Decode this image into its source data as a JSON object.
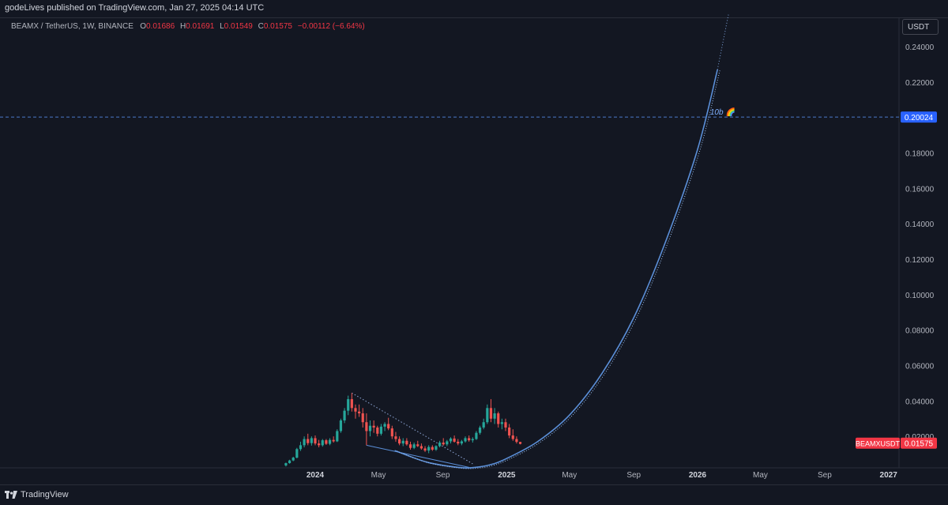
{
  "header": {
    "publish_text": "godeLives published on TradingView.com, Jan 27, 2025 04:14 UTC"
  },
  "legend": {
    "symbol": "BEAMX / TetherUS, 1W, BINANCE",
    "open_label": "O",
    "open": "0.01686",
    "high_label": "H",
    "high": "0.01691",
    "low_label": "L",
    "low": "0.01549",
    "close_label": "C",
    "close": "0.01575",
    "change": "−0.00112 (−6.64%)"
  },
  "price_axis": {
    "unit": "USDT"
  },
  "footer": {
    "brand": "TradingView",
    "logo_icon": "tradingview-logo-icon"
  },
  "colors": {
    "background": "#131722",
    "up": "#26a69a",
    "down": "#ef5350",
    "curve": "#5b8fd8",
    "label": "#2962ff"
  },
  "chart_data": {
    "type": "candlestick",
    "y_ticks": [
      "0.24000",
      "0.22000",
      "0.18000",
      "0.16000",
      "0.14000",
      "0.12000",
      "0.10000",
      "0.08000",
      "0.06000",
      "0.04000",
      "0.02000"
    ],
    "y_tick_values": [
      0.24,
      0.22,
      0.18,
      0.16,
      0.14,
      0.12,
      0.1,
      0.08,
      0.06,
      0.04,
      0.02
    ],
    "ylim": [
      0.0,
      0.25
    ],
    "x_ticks": [
      "2024",
      "May",
      "Sep",
      "2025",
      "May",
      "Sep",
      "2026",
      "May",
      "Sep",
      "2027"
    ],
    "x_tick_values": [
      "2024-01-01",
      "2024-05-01",
      "2024-09-01",
      "2025-01-01",
      "2025-05-01",
      "2025-09-01",
      "2026-01-01",
      "2026-05-01",
      "2026-09-01",
      "2027-01-01"
    ],
    "xlim": [
      "2023-09-15",
      "2027-03-01"
    ],
    "horizontal_line": {
      "value": 0.20024,
      "label": "0.20024"
    },
    "annotation": {
      "text": "10b",
      "emoji": "🌈",
      "at": [
        "2026-01-25",
        0.2016
      ]
    },
    "last_price_label": {
      "symbol": "BEAMXUSDT",
      "value": "0.01575",
      "y": 0.01575
    },
    "candles": [
      {
        "t": "2023-11-06",
        "o": 0.0036,
        "h": 0.0052,
        "l": 0.003,
        "c": 0.0049
      },
      {
        "t": "2023-11-13",
        "o": 0.0049,
        "h": 0.0068,
        "l": 0.0046,
        "c": 0.0064
      },
      {
        "t": "2023-11-20",
        "o": 0.0064,
        "h": 0.0085,
        "l": 0.006,
        "c": 0.008
      },
      {
        "t": "2023-11-27",
        "o": 0.008,
        "h": 0.0135,
        "l": 0.0076,
        "c": 0.0128
      },
      {
        "t": "2023-12-04",
        "o": 0.0128,
        "h": 0.017,
        "l": 0.0118,
        "c": 0.015
      },
      {
        "t": "2023-12-11",
        "o": 0.015,
        "h": 0.02,
        "l": 0.0138,
        "c": 0.0185
      },
      {
        "t": "2023-12-18",
        "o": 0.0185,
        "h": 0.0215,
        "l": 0.015,
        "c": 0.0162
      },
      {
        "t": "2023-12-25",
        "o": 0.0162,
        "h": 0.02,
        "l": 0.0148,
        "c": 0.019
      },
      {
        "t": "2024-01-01",
        "o": 0.019,
        "h": 0.0205,
        "l": 0.015,
        "c": 0.016
      },
      {
        "t": "2024-01-08",
        "o": 0.016,
        "h": 0.018,
        "l": 0.0138,
        "c": 0.015
      },
      {
        "t": "2024-01-15",
        "o": 0.015,
        "h": 0.0185,
        "l": 0.0142,
        "c": 0.0178
      },
      {
        "t": "2024-01-22",
        "o": 0.0178,
        "h": 0.0185,
        "l": 0.0152,
        "c": 0.0158
      },
      {
        "t": "2024-01-29",
        "o": 0.0158,
        "h": 0.019,
        "l": 0.015,
        "c": 0.018
      },
      {
        "t": "2024-02-05",
        "o": 0.018,
        "h": 0.02,
        "l": 0.0165,
        "c": 0.0172
      },
      {
        "t": "2024-02-12",
        "o": 0.0172,
        "h": 0.024,
        "l": 0.0168,
        "c": 0.023
      },
      {
        "t": "2024-02-19",
        "o": 0.023,
        "h": 0.03,
        "l": 0.022,
        "c": 0.029
      },
      {
        "t": "2024-02-26",
        "o": 0.029,
        "h": 0.036,
        "l": 0.0275,
        "c": 0.0345
      },
      {
        "t": "2024-03-04",
        "o": 0.0345,
        "h": 0.043,
        "l": 0.032,
        "c": 0.041
      },
      {
        "t": "2024-03-11",
        "o": 0.041,
        "h": 0.0445,
        "l": 0.034,
        "c": 0.036
      },
      {
        "t": "2024-03-18",
        "o": 0.036,
        "h": 0.038,
        "l": 0.03,
        "c": 0.034
      },
      {
        "t": "2024-03-25",
        "o": 0.034,
        "h": 0.038,
        "l": 0.031,
        "c": 0.033
      },
      {
        "t": "2024-04-01",
        "o": 0.033,
        "h": 0.036,
        "l": 0.025,
        "c": 0.028
      },
      {
        "t": "2024-04-08",
        "o": 0.028,
        "h": 0.033,
        "l": 0.015,
        "c": 0.023
      },
      {
        "t": "2024-04-15",
        "o": 0.023,
        "h": 0.029,
        "l": 0.02,
        "c": 0.026
      },
      {
        "t": "2024-04-22",
        "o": 0.026,
        "h": 0.029,
        "l": 0.022,
        "c": 0.025
      },
      {
        "t": "2024-04-29",
        "o": 0.025,
        "h": 0.026,
        "l": 0.02,
        "c": 0.0215
      },
      {
        "t": "2024-05-06",
        "o": 0.0215,
        "h": 0.027,
        "l": 0.0205,
        "c": 0.0255
      },
      {
        "t": "2024-05-13",
        "o": 0.0255,
        "h": 0.028,
        "l": 0.023,
        "c": 0.027
      },
      {
        "t": "2024-05-20",
        "o": 0.027,
        "h": 0.0305,
        "l": 0.0235,
        "c": 0.0245
      },
      {
        "t": "2024-05-27",
        "o": 0.0245,
        "h": 0.026,
        "l": 0.0185,
        "c": 0.02
      },
      {
        "t": "2024-06-03",
        "o": 0.02,
        "h": 0.0225,
        "l": 0.017,
        "c": 0.0185
      },
      {
        "t": "2024-06-10",
        "o": 0.0185,
        "h": 0.02,
        "l": 0.015,
        "c": 0.016
      },
      {
        "t": "2024-06-17",
        "o": 0.016,
        "h": 0.019,
        "l": 0.0145,
        "c": 0.0175
      },
      {
        "t": "2024-06-24",
        "o": 0.0175,
        "h": 0.019,
        "l": 0.0148,
        "c": 0.0155
      },
      {
        "t": "2024-07-01",
        "o": 0.0155,
        "h": 0.017,
        "l": 0.0125,
        "c": 0.0135
      },
      {
        "t": "2024-07-08",
        "o": 0.0135,
        "h": 0.0165,
        "l": 0.0128,
        "c": 0.0155
      },
      {
        "t": "2024-07-15",
        "o": 0.0155,
        "h": 0.0175,
        "l": 0.014,
        "c": 0.0145
      },
      {
        "t": "2024-07-22",
        "o": 0.0145,
        "h": 0.016,
        "l": 0.0125,
        "c": 0.0132
      },
      {
        "t": "2024-07-29",
        "o": 0.0132,
        "h": 0.0145,
        "l": 0.0112,
        "c": 0.012
      },
      {
        "t": "2024-08-05",
        "o": 0.012,
        "h": 0.015,
        "l": 0.0105,
        "c": 0.014
      },
      {
        "t": "2024-08-12",
        "o": 0.014,
        "h": 0.015,
        "l": 0.0118,
        "c": 0.0125
      },
      {
        "t": "2024-08-19",
        "o": 0.0125,
        "h": 0.015,
        "l": 0.0118,
        "c": 0.0145
      },
      {
        "t": "2024-08-26",
        "o": 0.0145,
        "h": 0.0175,
        "l": 0.0138,
        "c": 0.0165
      },
      {
        "t": "2024-09-02",
        "o": 0.0165,
        "h": 0.019,
        "l": 0.0148,
        "c": 0.0155
      },
      {
        "t": "2024-09-09",
        "o": 0.0155,
        "h": 0.018,
        "l": 0.0145,
        "c": 0.0172
      },
      {
        "t": "2024-09-16",
        "o": 0.0172,
        "h": 0.0195,
        "l": 0.016,
        "c": 0.0188
      },
      {
        "t": "2024-09-23",
        "o": 0.0188,
        "h": 0.0205,
        "l": 0.0165,
        "c": 0.017
      },
      {
        "t": "2024-09-30",
        "o": 0.017,
        "h": 0.0185,
        "l": 0.015,
        "c": 0.016
      },
      {
        "t": "2024-10-07",
        "o": 0.016,
        "h": 0.018,
        "l": 0.015,
        "c": 0.0172
      },
      {
        "t": "2024-10-14",
        "o": 0.0172,
        "h": 0.02,
        "l": 0.0165,
        "c": 0.019
      },
      {
        "t": "2024-10-21",
        "o": 0.019,
        "h": 0.0205,
        "l": 0.017,
        "c": 0.0178
      },
      {
        "t": "2024-10-28",
        "o": 0.0178,
        "h": 0.0195,
        "l": 0.0165,
        "c": 0.0185
      },
      {
        "t": "2024-11-04",
        "o": 0.0185,
        "h": 0.023,
        "l": 0.018,
        "c": 0.022
      },
      {
        "t": "2024-11-11",
        "o": 0.022,
        "h": 0.026,
        "l": 0.021,
        "c": 0.025
      },
      {
        "t": "2024-11-18",
        "o": 0.025,
        "h": 0.03,
        "l": 0.024,
        "c": 0.028
      },
      {
        "t": "2024-11-25",
        "o": 0.028,
        "h": 0.038,
        "l": 0.027,
        "c": 0.036
      },
      {
        "t": "2024-12-02",
        "o": 0.036,
        "h": 0.041,
        "l": 0.028,
        "c": 0.03
      },
      {
        "t": "2024-12-09",
        "o": 0.03,
        "h": 0.036,
        "l": 0.027,
        "c": 0.033
      },
      {
        "t": "2024-12-16",
        "o": 0.033,
        "h": 0.034,
        "l": 0.025,
        "c": 0.027
      },
      {
        "t": "2024-12-23",
        "o": 0.027,
        "h": 0.03,
        "l": 0.024,
        "c": 0.028
      },
      {
        "t": "2024-12-30",
        "o": 0.028,
        "h": 0.03,
        "l": 0.023,
        "c": 0.025
      },
      {
        "t": "2025-01-06",
        "o": 0.025,
        "h": 0.027,
        "l": 0.019,
        "c": 0.0205
      },
      {
        "t": "2025-01-13",
        "o": 0.0205,
        "h": 0.024,
        "l": 0.0175,
        "c": 0.0185
      },
      {
        "t": "2025-01-20",
        "o": 0.0185,
        "h": 0.02,
        "l": 0.016,
        "c": 0.0169
      },
      {
        "t": "2025-01-27",
        "o": 0.01686,
        "h": 0.01691,
        "l": 0.01549,
        "c": 0.01575
      }
    ],
    "trend_line": {
      "style": "dotted",
      "from": [
        "2024-03-11",
        0.0445
      ],
      "to": [
        "2024-10-28",
        0.0045
      ]
    },
    "channel_line": {
      "style": "solid",
      "from": [
        "2024-04-08",
        0.015
      ],
      "to": [
        "2024-10-21",
        0.0025
      ]
    },
    "curve": {
      "style": "double",
      "points": [
        [
          "2024-06-01",
          0.012
        ],
        [
          "2024-08-01",
          0.0055
        ],
        [
          "2024-10-01",
          0.0025
        ],
        [
          "2024-11-01",
          0.0025
        ],
        [
          "2024-12-01",
          0.004
        ],
        [
          "2025-01-01",
          0.0075
        ],
        [
          "2025-03-01",
          0.017
        ],
        [
          "2025-05-01",
          0.032
        ],
        [
          "2025-07-01",
          0.055
        ],
        [
          "2025-09-01",
          0.087
        ],
        [
          "2025-11-01",
          0.13
        ],
        [
          "2026-01-01",
          0.182
        ],
        [
          "2026-02-08",
          0.227
        ]
      ],
      "dotted_extension": [
        [
          "2026-02-08",
          0.227
        ],
        [
          "2026-03-01",
          0.258
        ]
      ]
    }
  }
}
